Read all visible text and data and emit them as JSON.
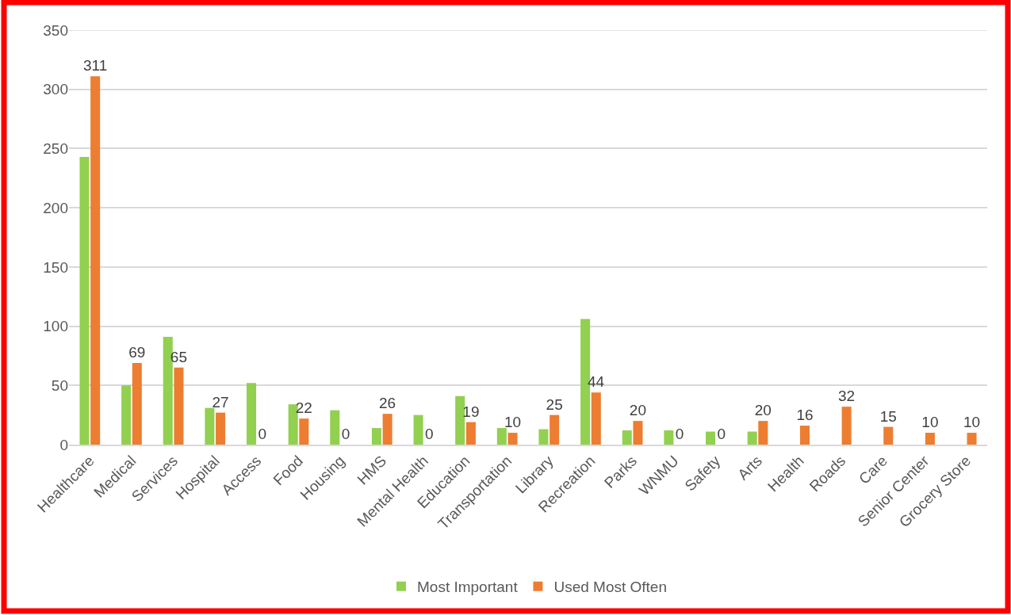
{
  "chart_data": {
    "type": "bar",
    "categories": [
      "Healthcare",
      "Medical",
      "Services",
      "Hospital",
      "Access",
      "Food",
      "Housing",
      "HMS",
      "Mental Health",
      "Education",
      "Transportation",
      "Library",
      "Recreation",
      "Parks",
      "WNMU",
      "Safety",
      "Arts",
      "Health",
      "Roads",
      "Care",
      "Senior Center",
      "Grocery Store"
    ],
    "series": [
      {
        "name": "Most Important",
        "color": "#92d050",
        "values": [
          243,
          50,
          91,
          31,
          52,
          34,
          29,
          14,
          25,
          41,
          14,
          13,
          106,
          12,
          12,
          11,
          11,
          0,
          0,
          0,
          0,
          0
        ]
      },
      {
        "name": "Used Most Often",
        "color": "#ed7d31",
        "values": [
          311,
          69,
          65,
          27,
          0,
          22,
          0,
          26,
          0,
          19,
          10,
          25,
          44,
          20,
          0,
          0,
          20,
          16,
          32,
          15,
          10,
          10
        ],
        "value_labels": [
          "311",
          "69",
          "65",
          "27",
          "0",
          "22",
          "0",
          "26",
          "0",
          "19",
          "10",
          "25",
          "44",
          "20",
          "0",
          "0",
          "20",
          "16",
          "32",
          "15",
          "10",
          "10"
        ]
      }
    ],
    "ylim": [
      0,
      350
    ],
    "yticks": [
      0,
      50,
      100,
      150,
      200,
      250,
      300,
      350
    ],
    "grid": "y",
    "legend": "bottom"
  }
}
